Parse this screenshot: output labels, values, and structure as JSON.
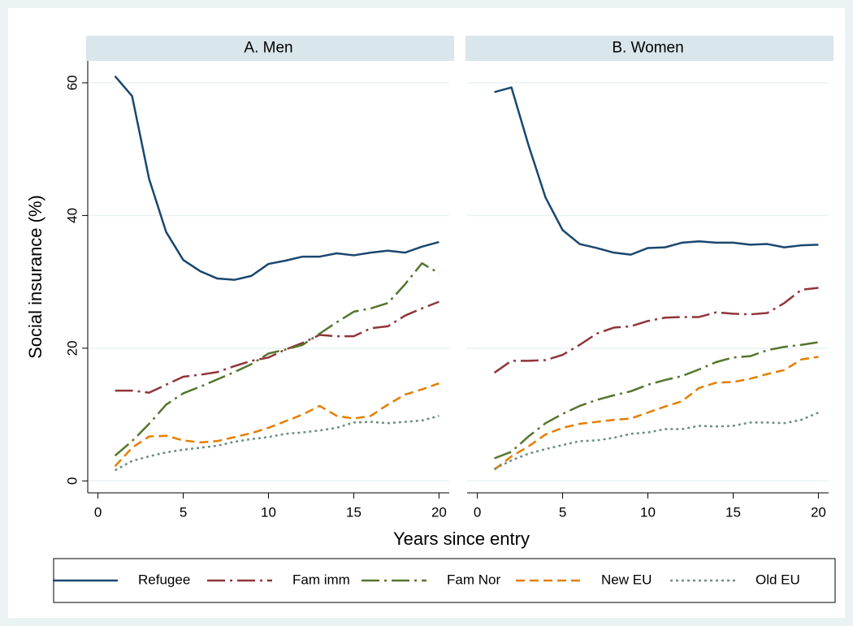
{
  "chart_data": {
    "type": "line",
    "ylabel": "Social insurance (%)",
    "xlabel": "Years since entry",
    "x": [
      1,
      2,
      3,
      4,
      5,
      6,
      7,
      8,
      9,
      10,
      11,
      12,
      13,
      14,
      15,
      16,
      17,
      18,
      19,
      20
    ],
    "xlim": [
      -0.6,
      20.6
    ],
    "ylim": [
      -1.8,
      63.3
    ],
    "xticks": [
      0,
      5,
      10,
      15,
      20
    ],
    "yticks": [
      0,
      20,
      40,
      60
    ],
    "grid": true,
    "series": [
      {
        "name": "Refugee",
        "color": "#1a476f"
      },
      {
        "name": "Fam imm",
        "color": "#90353b"
      },
      {
        "name": "Fam Nor",
        "color": "#55752f"
      },
      {
        "name": "New EU",
        "color": "#e37e00"
      },
      {
        "name": "Old EU",
        "color": "#6e8e84"
      }
    ],
    "panels": [
      {
        "title": "A. Men",
        "series": [
          {
            "values": [
              61,
              58,
              45.5,
              37.5,
              33.3,
              31.6,
              30.5,
              30.3,
              30.9,
              32.7,
              33.2,
              33.8,
              33.8,
              34.3,
              34,
              34.4,
              34.7,
              34.4,
              35.3,
              36
            ]
          },
          {
            "values": [
              13.6,
              13.6,
              13.3,
              14.5,
              15.7,
              16,
              16.4,
              17.3,
              18.1,
              18.6,
              19.8,
              20.8,
              22,
              21.8,
              21.8,
              23,
              23.3,
              24.9,
              26,
              27
            ]
          },
          {
            "values": [
              3.8,
              6,
              8.6,
              11.5,
              13.2,
              14.2,
              15.3,
              16.4,
              17.6,
              19.2,
              19.8,
              20.5,
              22.2,
              23.9,
              25.5,
              26,
              26.8,
              29.6,
              32.8,
              31.3
            ]
          },
          {
            "values": [
              2.2,
              5,
              6.7,
              6.8,
              6.1,
              5.8,
              6,
              6.6,
              7.2,
              8,
              9,
              10,
              11.3,
              9.8,
              9.4,
              9.8,
              11.5,
              13,
              13.8,
              14.7
            ]
          },
          {
            "values": [
              1.6,
              3,
              3.7,
              4.3,
              4.7,
              5,
              5.3,
              5.9,
              6.3,
              6.6,
              7.1,
              7.3,
              7.6,
              8,
              8.8,
              8.9,
              8.7,
              8.9,
              9.1,
              9.8
            ]
          }
        ]
      },
      {
        "title": "B. Women",
        "series": [
          {
            "values": [
              58.6,
              59.3,
              50.6,
              42.7,
              37.8,
              35.7,
              35.1,
              34.4,
              34.1,
              35.1,
              35.2,
              35.9,
              36.1,
              35.9,
              35.9,
              35.6,
              35.7,
              35.2,
              35.5,
              35.6
            ]
          },
          {
            "values": [
              16.3,
              18.1,
              18.1,
              18.2,
              19,
              20.5,
              22.2,
              23.1,
              23.3,
              24.1,
              24.6,
              24.7,
              24.7,
              25.4,
              25.2,
              25.1,
              25.3,
              26.8,
              28.8,
              29.1
            ]
          },
          {
            "values": [
              3.4,
              4.4,
              6.7,
              8.7,
              10.1,
              11.3,
              12.2,
              12.9,
              13.5,
              14.5,
              15.2,
              15.8,
              16.8,
              17.9,
              18.6,
              18.8,
              19.7,
              20.2,
              20.5,
              20.9
            ]
          },
          {
            "values": [
              1.7,
              3.7,
              5.2,
              7,
              8,
              8.6,
              8.9,
              9.2,
              9.4,
              10.3,
              11.2,
              12,
              14,
              14.8,
              14.9,
              15.4,
              16.1,
              16.7,
              18.3,
              18.7
            ]
          },
          {
            "values": [
              1.8,
              3.1,
              4.1,
              4.8,
              5.4,
              6,
              6.1,
              6.5,
              7.1,
              7.3,
              7.8,
              7.8,
              8.3,
              8.2,
              8.3,
              8.8,
              8.8,
              8.7,
              9.2,
              10.3
            ]
          }
        ]
      }
    ]
  }
}
